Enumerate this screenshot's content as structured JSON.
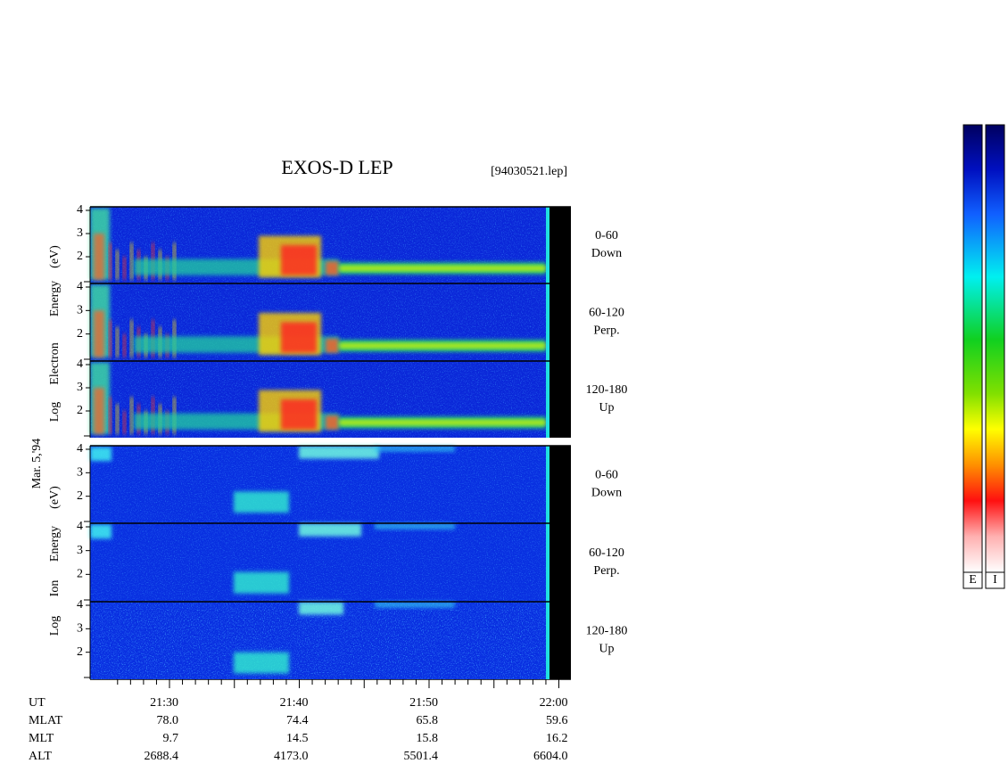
{
  "title": "EXOS-D LEP",
  "file": "[94030521.lep]",
  "electron_axis_words": [
    "Log",
    "Electron",
    "Energy",
    "(eV)"
  ],
  "ion_axis_words": [
    "Log",
    "Ion",
    "Energy",
    "(eV)"
  ],
  "date": "Mar. 5,'94",
  "electron_panels": [
    {
      "range": "0-60",
      "direction": "Down"
    },
    {
      "range": "60-120",
      "direction": "Perp."
    },
    {
      "range": "120-180",
      "direction": "Up"
    }
  ],
  "ion_panels": [
    {
      "range": "0-60",
      "direction": "Down"
    },
    {
      "range": "60-120",
      "direction": "Perp."
    },
    {
      "range": "120-180",
      "direction": "Up"
    }
  ],
  "yticks": [
    2,
    3,
    4
  ],
  "xticks": [
    "21:30",
    "21:40",
    "21:50",
    "22:00"
  ],
  "ut_label": "UT",
  "ephemeris": [
    {
      "label": "MLAT",
      "values": [
        "78.0",
        "74.4",
        "65.8",
        "59.6"
      ]
    },
    {
      "label": "MLT",
      "values": [
        "9.7",
        "14.5",
        "15.8",
        "16.2"
      ]
    },
    {
      "label": "ALT",
      "values": [
        "2688.4",
        "4173.0",
        "5501.4",
        "6604.0"
      ]
    }
  ],
  "colorbars": [
    "E",
    "I"
  ]
}
